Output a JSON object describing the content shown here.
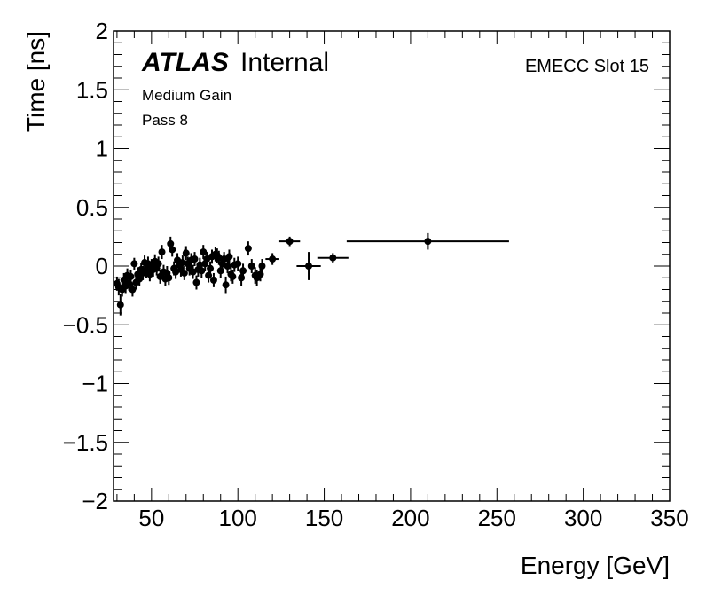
{
  "chart_data": {
    "type": "scatter",
    "title": "",
    "xlabel": "Energy [GeV]",
    "ylabel": "Time [ns]",
    "xlim": [
      28,
      350
    ],
    "ylim": [
      -2,
      2
    ],
    "x_ticks": [
      50,
      100,
      150,
      200,
      250,
      300,
      350
    ],
    "y_ticks": [
      -2,
      -1.5,
      -1,
      -0.5,
      0,
      0.5,
      1,
      1.5,
      2
    ],
    "y_tick_labels": [
      "−2",
      "−1.5",
      "−1",
      "−0.5",
      "0",
      "0.5",
      "1",
      "1.5",
      "2"
    ],
    "grid": false,
    "annotations": {
      "experiment": "ATLAS",
      "status": "Internal",
      "gain": "Medium Gain",
      "pass": "Pass 8",
      "slot": "EMECC Slot 15"
    },
    "series": [
      {
        "name": "EMECC Slot 15",
        "points": [
          {
            "x": 30,
            "y": -0.15,
            "xerr": 1,
            "yerr": 0.06
          },
          {
            "x": 31,
            "y": -0.18,
            "xerr": 1,
            "yerr": 0.07
          },
          {
            "x": 32,
            "y": -0.33,
            "xerr": 1,
            "yerr": 0.09
          },
          {
            "x": 33,
            "y": -0.2,
            "xerr": 1,
            "yerr": 0.06
          },
          {
            "x": 34,
            "y": -0.12,
            "xerr": 1,
            "yerr": 0.06
          },
          {
            "x": 35,
            "y": -0.17,
            "xerr": 1,
            "yerr": 0.06
          },
          {
            "x": 36,
            "y": -0.08,
            "xerr": 1,
            "yerr": 0.06
          },
          {
            "x": 37,
            "y": -0.15,
            "xerr": 1,
            "yerr": 0.06
          },
          {
            "x": 38,
            "y": -0.09,
            "xerr": 1,
            "yerr": 0.06
          },
          {
            "x": 39,
            "y": -0.2,
            "xerr": 1,
            "yerr": 0.06
          },
          {
            "x": 40,
            "y": 0.02,
            "xerr": 1,
            "yerr": 0.05
          },
          {
            "x": 41,
            "y": -0.14,
            "xerr": 1,
            "yerr": 0.06
          },
          {
            "x": 42,
            "y": -0.07,
            "xerr": 1,
            "yerr": 0.06
          },
          {
            "x": 43,
            "y": -0.11,
            "xerr": 1,
            "yerr": 0.06
          },
          {
            "x": 44,
            "y": -0.03,
            "xerr": 1,
            "yerr": 0.06
          },
          {
            "x": 45,
            "y": -0.06,
            "xerr": 1,
            "yerr": 0.06
          },
          {
            "x": 46,
            "y": 0.03,
            "xerr": 1,
            "yerr": 0.06
          },
          {
            "x": 47,
            "y": -0.04,
            "xerr": 1,
            "yerr": 0.06
          },
          {
            "x": 48,
            "y": 0.02,
            "xerr": 1,
            "yerr": 0.06
          },
          {
            "x": 49,
            "y": -0.07,
            "xerr": 1,
            "yerr": 0.06
          },
          {
            "x": 50,
            "y": 0.0,
            "xerr": 1,
            "yerr": 0.06
          },
          {
            "x": 51,
            "y": -0.03,
            "xerr": 1,
            "yerr": 0.06
          },
          {
            "x": 52,
            "y": 0.04,
            "xerr": 1,
            "yerr": 0.06
          },
          {
            "x": 53,
            "y": -0.02,
            "xerr": 1,
            "yerr": 0.06
          },
          {
            "x": 54,
            "y": 0.02,
            "xerr": 1,
            "yerr": 0.06
          },
          {
            "x": 55,
            "y": -0.09,
            "xerr": 1,
            "yerr": 0.06
          },
          {
            "x": 56,
            "y": 0.12,
            "xerr": 1,
            "yerr": 0.06
          },
          {
            "x": 57,
            "y": -0.05,
            "xerr": 1,
            "yerr": 0.06
          },
          {
            "x": 58,
            "y": -0.11,
            "xerr": 1,
            "yerr": 0.06
          },
          {
            "x": 59,
            "y": -0.06,
            "xerr": 1,
            "yerr": 0.06
          },
          {
            "x": 60,
            "y": -0.1,
            "xerr": 1,
            "yerr": 0.06
          },
          {
            "x": 61,
            "y": 0.19,
            "xerr": 1,
            "yerr": 0.06
          },
          {
            "x": 62,
            "y": 0.14,
            "xerr": 1,
            "yerr": 0.06
          },
          {
            "x": 63,
            "y": -0.02,
            "xerr": 1,
            "yerr": 0.06
          },
          {
            "x": 64,
            "y": -0.05,
            "xerr": 1,
            "yerr": 0.06
          },
          {
            "x": 65,
            "y": 0.05,
            "xerr": 1,
            "yerr": 0.06
          },
          {
            "x": 66,
            "y": 0.01,
            "xerr": 1,
            "yerr": 0.06
          },
          {
            "x": 67,
            "y": -0.03,
            "xerr": 1,
            "yerr": 0.06
          },
          {
            "x": 68,
            "y": 0.03,
            "xerr": 1,
            "yerr": 0.06
          },
          {
            "x": 69,
            "y": -0.06,
            "xerr": 1,
            "yerr": 0.06
          },
          {
            "x": 70,
            "y": 0.11,
            "xerr": 1,
            "yerr": 0.06
          },
          {
            "x": 71,
            "y": 0.02,
            "xerr": 1,
            "yerr": 0.06
          },
          {
            "x": 72,
            "y": -0.02,
            "xerr": 1,
            "yerr": 0.06
          },
          {
            "x": 73,
            "y": 0.05,
            "xerr": 1,
            "yerr": 0.06
          },
          {
            "x": 74,
            "y": -0.05,
            "xerr": 1,
            "yerr": 0.06
          },
          {
            "x": 75,
            "y": 0.06,
            "xerr": 1,
            "yerr": 0.06
          },
          {
            "x": 76,
            "y": -0.14,
            "xerr": 1,
            "yerr": 0.06
          },
          {
            "x": 77,
            "y": -0.03,
            "xerr": 1,
            "yerr": 0.06
          },
          {
            "x": 78,
            "y": 0.01,
            "xerr": 1,
            "yerr": 0.06
          },
          {
            "x": 79,
            "y": -0.04,
            "xerr": 1,
            "yerr": 0.06
          },
          {
            "x": 80,
            "y": 0.12,
            "xerr": 1,
            "yerr": 0.06
          },
          {
            "x": 81,
            "y": 0.02,
            "xerr": 1,
            "yerr": 0.06
          },
          {
            "x": 82,
            "y": 0.06,
            "xerr": 1,
            "yerr": 0.06
          },
          {
            "x": 83,
            "y": -0.08,
            "xerr": 1,
            "yerr": 0.06
          },
          {
            "x": 84,
            "y": -0.02,
            "xerr": 1,
            "yerr": 0.06
          },
          {
            "x": 85,
            "y": 0.08,
            "xerr": 1,
            "yerr": 0.06
          },
          {
            "x": 86,
            "y": -0.12,
            "xerr": 1,
            "yerr": 0.06
          },
          {
            "x": 87,
            "y": 0.1,
            "xerr": 1,
            "yerr": 0.06
          },
          {
            "x": 88,
            "y": 0.09,
            "xerr": 1,
            "yerr": 0.06
          },
          {
            "x": 89,
            "y": 0.07,
            "xerr": 1,
            "yerr": 0.06
          },
          {
            "x": 90,
            "y": -0.04,
            "xerr": 1,
            "yerr": 0.06
          },
          {
            "x": 91,
            "y": 0.02,
            "xerr": 1,
            "yerr": 0.06
          },
          {
            "x": 92,
            "y": 0.06,
            "xerr": 1,
            "yerr": 0.06
          },
          {
            "x": 93,
            "y": -0.16,
            "xerr": 1,
            "yerr": 0.07
          },
          {
            "x": 94,
            "y": 0.0,
            "xerr": 1,
            "yerr": 0.06
          },
          {
            "x": 95,
            "y": 0.08,
            "xerr": 1,
            "yerr": 0.06
          },
          {
            "x": 96,
            "y": -0.07,
            "xerr": 1,
            "yerr": 0.06
          },
          {
            "x": 97,
            "y": -0.09,
            "xerr": 1,
            "yerr": 0.06
          },
          {
            "x": 98,
            "y": 0.01,
            "xerr": 1,
            "yerr": 0.06
          },
          {
            "x": 100,
            "y": 0.02,
            "xerr": 1,
            "yerr": 0.06
          },
          {
            "x": 102,
            "y": -0.1,
            "xerr": 1,
            "yerr": 0.07
          },
          {
            "x": 103,
            "y": -0.04,
            "xerr": 1,
            "yerr": 0.06
          },
          {
            "x": 106,
            "y": 0.15,
            "xerr": 1,
            "yerr": 0.06
          },
          {
            "x": 108,
            "y": 0.0,
            "xerr": 1,
            "yerr": 0.06
          },
          {
            "x": 110,
            "y": -0.08,
            "xerr": 1,
            "yerr": 0.07
          },
          {
            "x": 111,
            "y": -0.1,
            "xerr": 1,
            "yerr": 0.07
          },
          {
            "x": 113,
            "y": -0.07,
            "xerr": 1,
            "yerr": 0.06
          },
          {
            "x": 114,
            "y": 0.0,
            "xerr": 1,
            "yerr": 0.06
          },
          {
            "x": 120,
            "y": 0.06,
            "xerr": 4,
            "yerr": 0.05
          },
          {
            "x": 130,
            "y": 0.21,
            "xerr": 6,
            "yerr": 0.04
          },
          {
            "x": 141,
            "y": 0.0,
            "xerr": 7,
            "yerr": 0.12
          },
          {
            "x": 155,
            "y": 0.07,
            "xerr": 9,
            "yerr": 0.04
          },
          {
            "x": 210,
            "y": 0.21,
            "xerr": 47,
            "yerr": 0.07
          }
        ]
      }
    ]
  }
}
